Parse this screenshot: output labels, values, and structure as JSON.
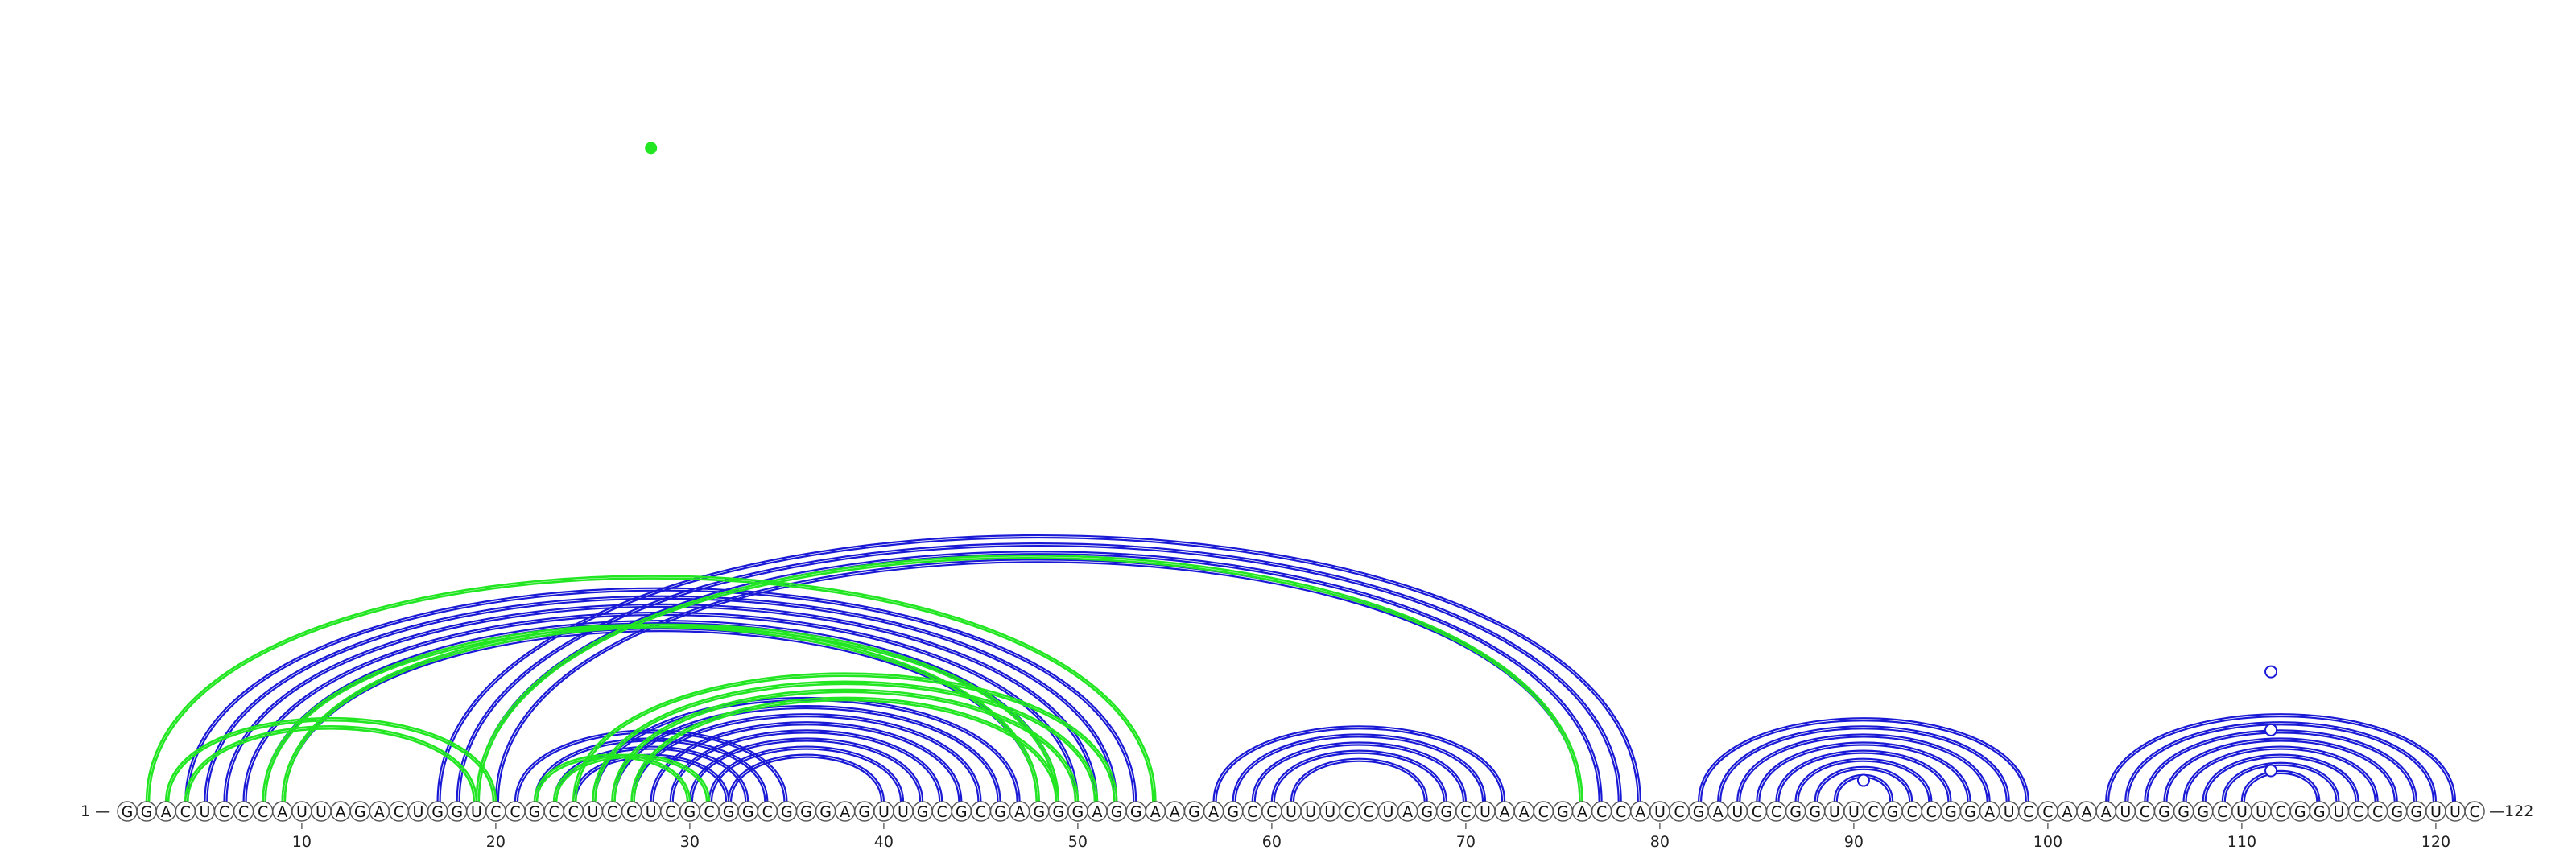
{
  "chart_data": {
    "type": "arc-diagram",
    "sequence": "GGACUCCCAUUAGACUGGUCCGCCUCCUCGCGGCGGGAGUUGCGCGAGGGAGGAAGAGCCUUUCCUAGGCUAACGACCAUCGAUCCGGUUCGCCGGAUCCAAAUCGGGCUUCGGUCCGGUUC",
    "length": 122,
    "start_label": "1 —",
    "end_label": "—122",
    "tick_values": [
      10,
      20,
      30,
      40,
      50,
      60,
      70,
      80,
      90,
      100,
      110,
      120
    ],
    "colors": {
      "blue": "#1a1ad6",
      "green": "#22e622"
    },
    "blue_pairs": [
      [
        4,
        53
      ],
      [
        5,
        52
      ],
      [
        6,
        51
      ],
      [
        7,
        50
      ],
      [
        8,
        49
      ],
      [
        9,
        48
      ],
      [
        17,
        79
      ],
      [
        18,
        78
      ],
      [
        19,
        77
      ],
      [
        20,
        76
      ],
      [
        21,
        35
      ],
      [
        22,
        34
      ],
      [
        23,
        33
      ],
      [
        24,
        32
      ],
      [
        25,
        47
      ],
      [
        26,
        46
      ],
      [
        27,
        45
      ],
      [
        28,
        44
      ],
      [
        29,
        43
      ],
      [
        30,
        42
      ],
      [
        31,
        41
      ],
      [
        32,
        40
      ],
      [
        57,
        72
      ],
      [
        58,
        71
      ],
      [
        59,
        70
      ],
      [
        60,
        69
      ],
      [
        61,
        68
      ],
      [
        82,
        99
      ],
      [
        83,
        98
      ],
      [
        84,
        97
      ],
      [
        85,
        96
      ],
      [
        86,
        95
      ],
      [
        87,
        94
      ],
      [
        88,
        93
      ],
      [
        89,
        92
      ],
      [
        103,
        121
      ],
      [
        104,
        120
      ],
      [
        105,
        119
      ],
      [
        106,
        118
      ],
      [
        107,
        117
      ],
      [
        108,
        116
      ],
      [
        109,
        115
      ],
      [
        110,
        114
      ]
    ],
    "green_pairs": [
      [
        2,
        54
      ],
      [
        3,
        20
      ],
      [
        4,
        19
      ],
      [
        8,
        48
      ],
      [
        9,
        49
      ],
      [
        19,
        76
      ],
      [
        24,
        52
      ],
      [
        25,
        51
      ],
      [
        26,
        50
      ],
      [
        27,
        49
      ],
      [
        23,
        31
      ],
      [
        22,
        30
      ]
    ],
    "blue_markers": [
      90.5,
      111.5,
      111.5,
      111.5
    ],
    "blue_marker_heights": [
      0.3,
      0.55,
      1.6,
      3.1
    ],
    "green_markers": [
      28
    ],
    "green_marker_heights": [
      16.6
    ]
  }
}
